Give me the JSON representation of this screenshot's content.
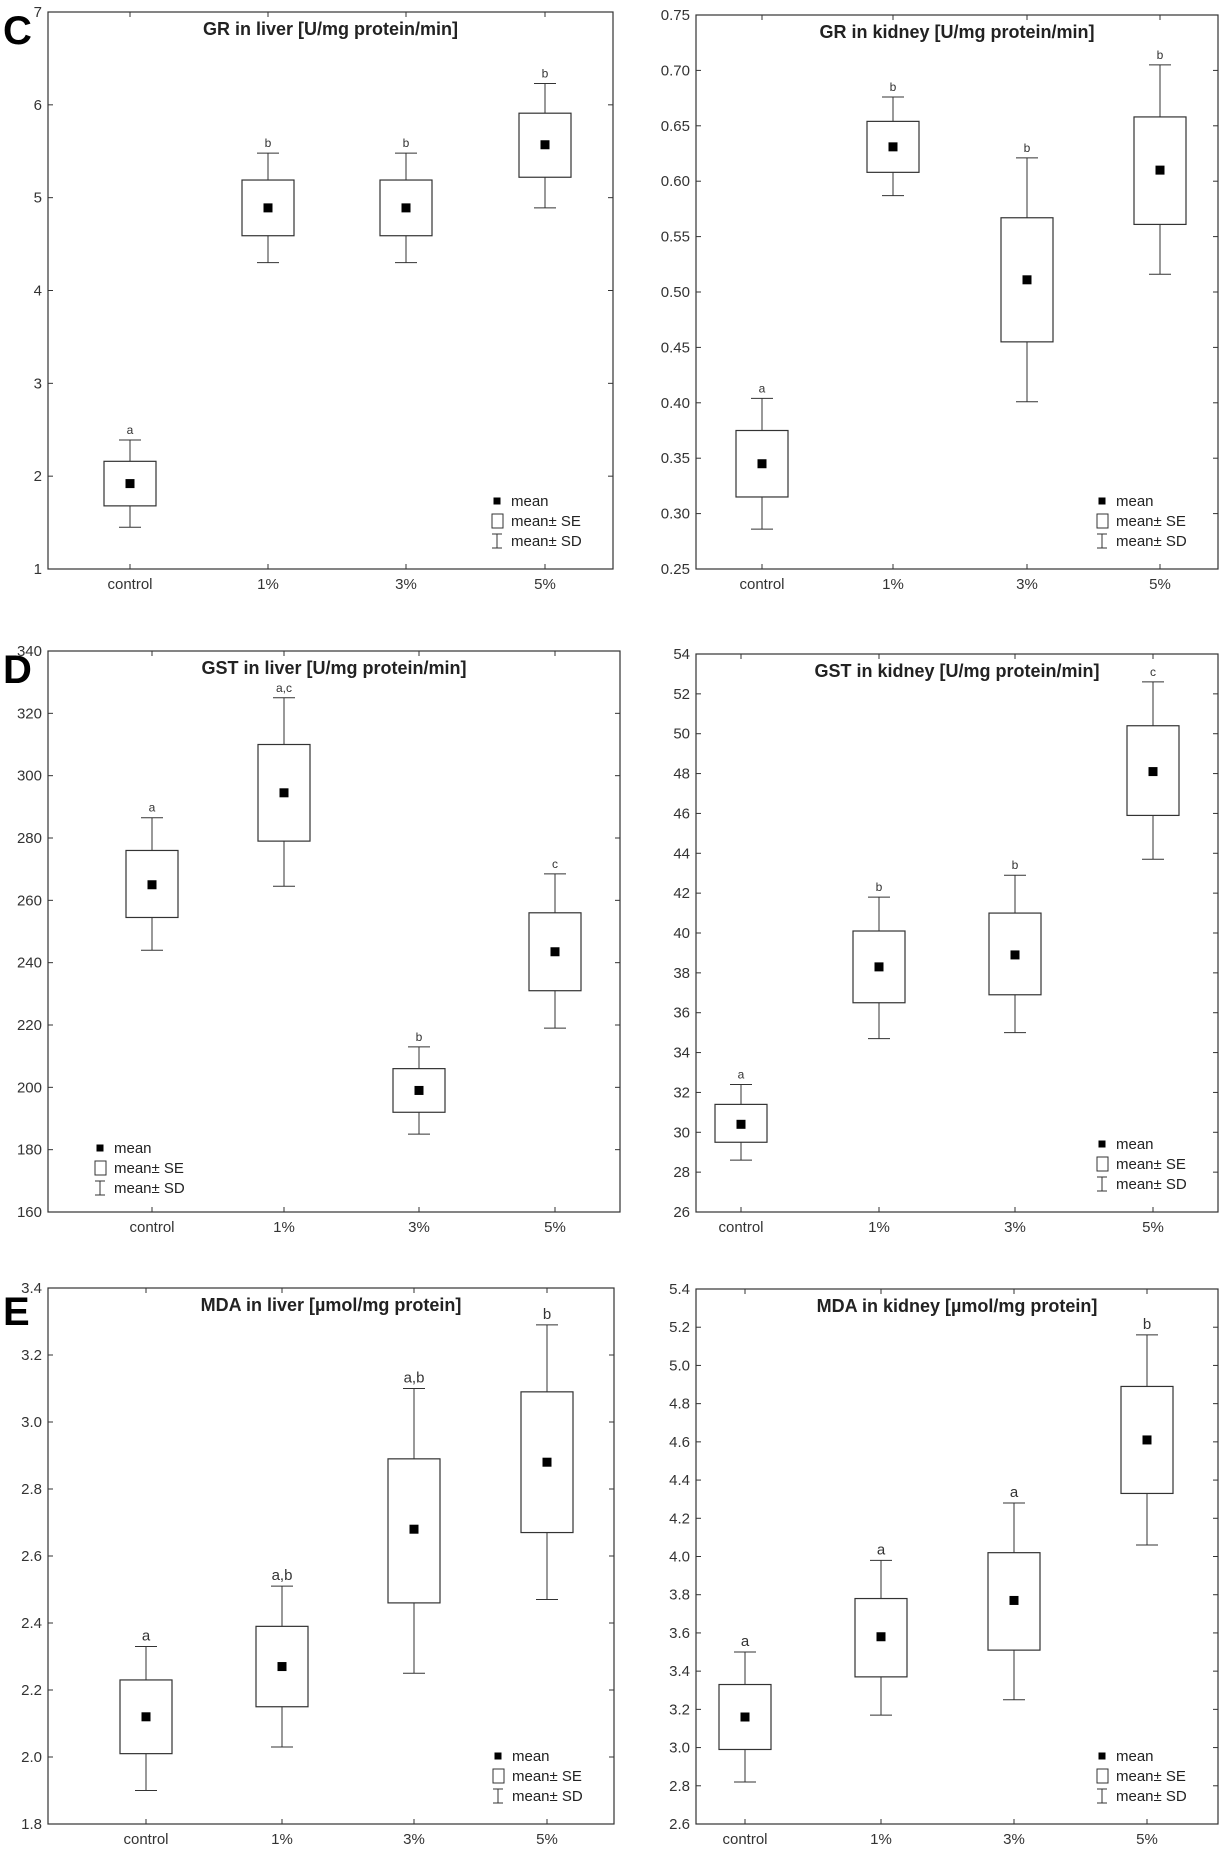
{
  "legend": {
    "mean": "mean",
    "se": "mean± SE",
    "sd": "mean± SD"
  },
  "chart_data": [
    {
      "id": "gr-liver",
      "panel": "C",
      "type": "box",
      "title": "GR in liver [U/mg protein/min]",
      "categories": [
        "control",
        "1%",
        "3%",
        "5%"
      ],
      "ylim": [
        1,
        7
      ],
      "yticks": [
        1,
        2,
        3,
        4,
        5,
        6,
        7
      ],
      "tick_labels": [
        "1",
        "2",
        "3",
        "4",
        "5",
        "6",
        "7"
      ],
      "mean": [
        1.92,
        4.89,
        4.89,
        5.57
      ],
      "se_low": [
        1.68,
        4.59,
        4.59,
        5.22
      ],
      "se_high": [
        2.16,
        5.19,
        5.19,
        5.91
      ],
      "sd_low": [
        1.45,
        4.3,
        4.3,
        4.89
      ],
      "sd_high": [
        2.39,
        5.48,
        5.48,
        6.23
      ],
      "significance": [
        "a",
        "b",
        "b",
        "b"
      ],
      "legend_position": "bottom-right"
    },
    {
      "id": "gr-kidney",
      "panel": "",
      "type": "box",
      "title": "GR in kidney [U/mg protein/min]",
      "categories": [
        "control",
        "1%",
        "3%",
        "5%"
      ],
      "ylim": [
        0.25,
        0.75
      ],
      "yticks": [
        0.25,
        0.3,
        0.35,
        0.4,
        0.45,
        0.5,
        0.55,
        0.6,
        0.65,
        0.7,
        0.75
      ],
      "tick_labels": [
        "0.25",
        "0.30",
        "0.35",
        "0.40",
        "0.45",
        "0.50",
        "0.55",
        "0.60",
        "0.65",
        "0.70",
        "0.75"
      ],
      "mean": [
        0.345,
        0.631,
        0.511,
        0.61
      ],
      "se_low": [
        0.315,
        0.608,
        0.455,
        0.561
      ],
      "se_high": [
        0.375,
        0.654,
        0.567,
        0.658
      ],
      "sd_low": [
        0.286,
        0.587,
        0.401,
        0.516
      ],
      "sd_high": [
        0.404,
        0.676,
        0.621,
        0.705
      ],
      "significance": [
        "a",
        "b",
        "b",
        "b"
      ],
      "legend_position": "bottom-right"
    },
    {
      "id": "gst-liver",
      "panel": "D",
      "type": "box",
      "title": "GST in liver [U/mg protein/min]",
      "categories": [
        "control",
        "1%",
        "3%",
        "5%"
      ],
      "ylim": [
        160,
        340
      ],
      "yticks": [
        160,
        180,
        200,
        220,
        240,
        260,
        280,
        300,
        320,
        340
      ],
      "tick_labels": [
        "160",
        "180",
        "200",
        "220",
        "240",
        "260",
        "280",
        "300",
        "320",
        "340"
      ],
      "mean": [
        265,
        294.5,
        199,
        243.5
      ],
      "se_low": [
        254.5,
        279,
        192,
        231
      ],
      "se_high": [
        276,
        310,
        206,
        256
      ],
      "sd_low": [
        244,
        264.5,
        185,
        219
      ],
      "sd_high": [
        286.5,
        325,
        213,
        268.5
      ],
      "significance": [
        "a",
        "a,c",
        "b",
        "c"
      ],
      "legend_position": "bottom-left"
    },
    {
      "id": "gst-kidney",
      "panel": "",
      "type": "box",
      "title": "GST in kidney [U/mg protein/min]",
      "categories": [
        "control",
        "1%",
        "3%",
        "5%"
      ],
      "ylim": [
        26,
        54
      ],
      "yticks": [
        26,
        28,
        30,
        32,
        34,
        36,
        38,
        40,
        42,
        44,
        46,
        48,
        50,
        52,
        54
      ],
      "tick_labels": [
        "26",
        "28",
        "30",
        "32",
        "34",
        "36",
        "38",
        "40",
        "42",
        "44",
        "46",
        "48",
        "50",
        "52",
        "54"
      ],
      "mean": [
        30.4,
        38.3,
        38.9,
        48.1
      ],
      "se_low": [
        29.5,
        36.5,
        36.9,
        45.9
      ],
      "se_high": [
        31.4,
        40.1,
        41.0,
        50.4
      ],
      "sd_low": [
        28.6,
        34.7,
        35.0,
        43.7
      ],
      "sd_high": [
        32.4,
        41.8,
        42.9,
        52.6
      ],
      "significance": [
        "a",
        "b",
        "b",
        "c"
      ],
      "legend_position": "bottom-right"
    },
    {
      "id": "mda-liver",
      "panel": "E",
      "type": "box",
      "title": "MDA in liver [µmol/mg protein]",
      "categories": [
        "control",
        "1%",
        "3%",
        "5%"
      ],
      "ylim": [
        1.8,
        3.4
      ],
      "yticks": [
        1.8,
        2.0,
        2.2,
        2.4,
        2.6,
        2.8,
        3.0,
        3.2,
        3.4
      ],
      "tick_labels": [
        "1.8",
        "2.0",
        "2.2",
        "2.4",
        "2.6",
        "2.8",
        "3.0",
        "3.2",
        "3.4"
      ],
      "mean": [
        2.12,
        2.27,
        2.68,
        2.88
      ],
      "se_low": [
        2.01,
        2.15,
        2.46,
        2.67
      ],
      "se_high": [
        2.23,
        2.39,
        2.89,
        3.09
      ],
      "sd_low": [
        1.9,
        2.03,
        2.25,
        2.47
      ],
      "sd_high": [
        2.33,
        2.51,
        3.1,
        3.29
      ],
      "significance": [
        "a",
        "a,b",
        "a,b",
        "b"
      ],
      "legend_position": "bottom-right"
    },
    {
      "id": "mda-kidney",
      "panel": "",
      "type": "box",
      "title": "MDA in kidney [µmol/mg protein]",
      "categories": [
        "control",
        "1%",
        "3%",
        "5%"
      ],
      "ylim": [
        2.6,
        5.4
      ],
      "yticks": [
        2.6,
        2.8,
        3.0,
        3.2,
        3.4,
        3.6,
        3.8,
        4.0,
        4.2,
        4.4,
        4.6,
        4.8,
        5.0,
        5.2,
        5.4
      ],
      "tick_labels": [
        "2.6",
        "2.8",
        "3.0",
        "3.2",
        "3.4",
        "3.6",
        "3.8",
        "4.0",
        "4.2",
        "4.4",
        "4.6",
        "4.8",
        "5.0",
        "5.2",
        "5.4"
      ],
      "mean": [
        3.16,
        3.58,
        3.77,
        4.61
      ],
      "se_low": [
        2.99,
        3.37,
        3.51,
        4.33
      ],
      "se_high": [
        3.33,
        3.78,
        4.02,
        4.89
      ],
      "sd_low": [
        2.82,
        3.17,
        3.25,
        4.06
      ],
      "sd_high": [
        3.5,
        3.98,
        4.28,
        5.16
      ],
      "significance": [
        "a",
        "a",
        "a",
        "b"
      ],
      "legend_position": "bottom-right"
    }
  ]
}
